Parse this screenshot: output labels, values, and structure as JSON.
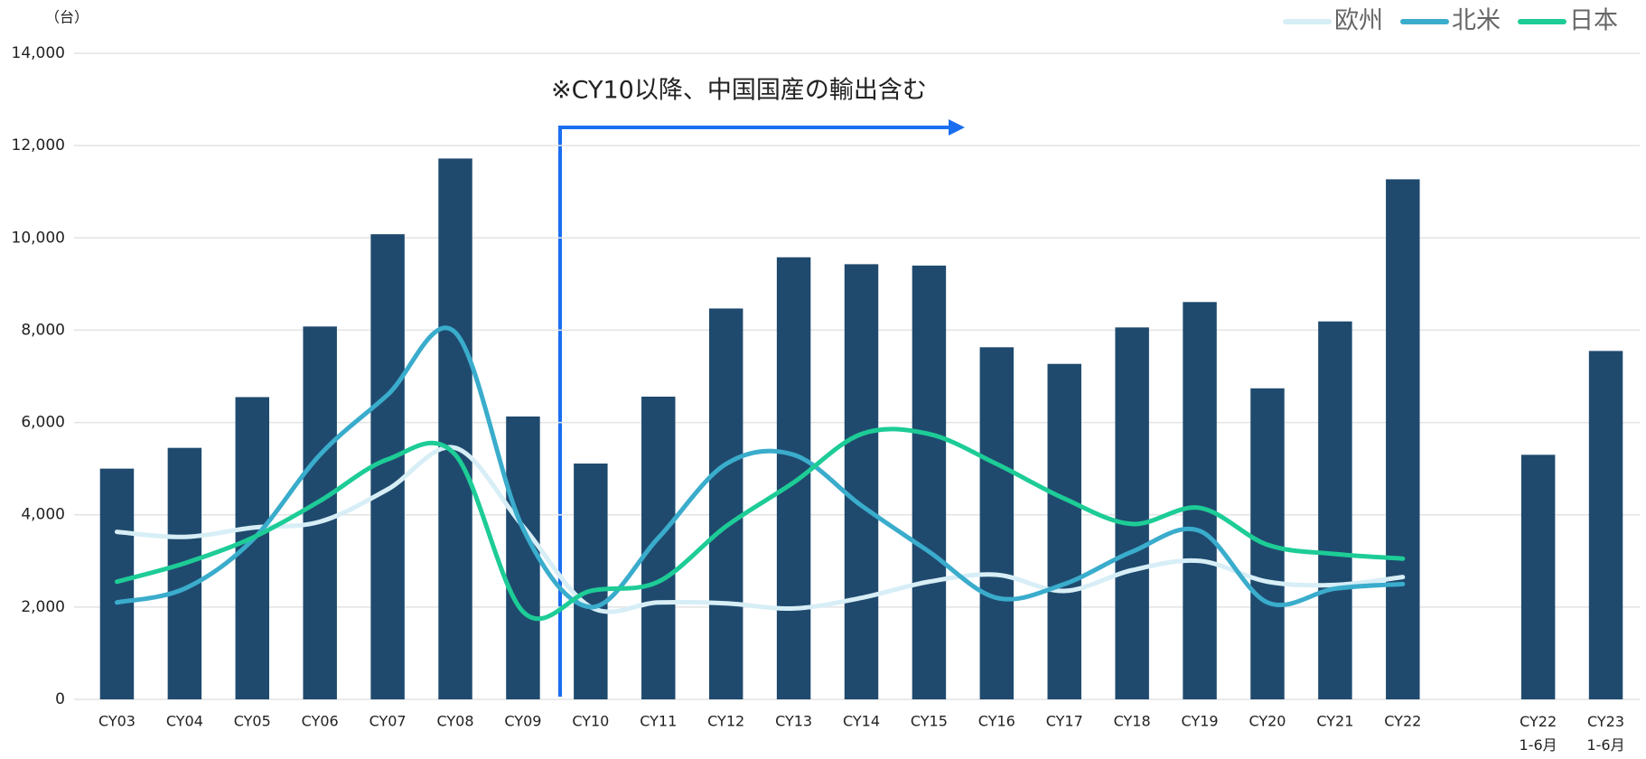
{
  "chart_data": {
    "type": "bar",
    "unit_label": "（台）",
    "annotation": "※CY10以降、中国国産の輸出含む",
    "categories": [
      "CY03",
      "CY04",
      "CY05",
      "CY06",
      "CY07",
      "CY08",
      "CY09",
      "CY10",
      "CY11",
      "CY12",
      "CY13",
      "CY14",
      "CY15",
      "CY16",
      "CY17",
      "CY18",
      "CY19",
      "CY20",
      "CY21",
      "CY22",
      null,
      "CY22\n1-6月",
      "CY23\n1-6月"
    ],
    "values": [
      5000,
      5450,
      6550,
      8080,
      10080,
      11720,
      6130,
      5110,
      6560,
      8470,
      9580,
      9430,
      9400,
      7630,
      7270,
      8060,
      8610,
      6740,
      8190,
      11270,
      null,
      5300,
      7550
    ],
    "color": "#1f4a6e",
    "series": [
      {
        "name": "欧州",
        "color": "#d7eef6",
        "values": [
          3630,
          3520,
          3720,
          3850,
          4550,
          5450,
          3750,
          2000,
          2100,
          2080,
          1970,
          2200,
          2550,
          2700,
          2350,
          2800,
          3000,
          2550,
          2480,
          2650,
          null,
          null,
          null
        ]
      },
      {
        "name": "北米",
        "color": "#3aaccc",
        "values": [
          2100,
          2400,
          3450,
          5300,
          6600,
          7950,
          3700,
          2000,
          3500,
          5100,
          5300,
          4200,
          3200,
          2200,
          2500,
          3200,
          3650,
          2100,
          2400,
          2500,
          null,
          null,
          null
        ]
      },
      {
        "name": "日本",
        "color": "#1dcc96",
        "values": [
          2550,
          2950,
          3500,
          4300,
          5200,
          5300,
          1900,
          2350,
          2550,
          3750,
          4700,
          5750,
          5750,
          5100,
          4350,
          3800,
          4150,
          3350,
          3150,
          3050,
          null,
          null,
          null
        ]
      }
    ],
    "ylim": [
      0,
      14000
    ],
    "yticks": [
      0,
      {
        "value": 2000,
        "label": "2,000"
      },
      {
        "value": 4000,
        "label": "4,000"
      },
      {
        "value": 6000,
        "label": "6,000"
      },
      {
        "value": 8000,
        "label": "8,000"
      },
      {
        "value": 10000,
        "label": "10,000"
      },
      {
        "value": 12000,
        "label": "12,000"
      },
      {
        "value": 14000,
        "label": "14,000"
      }
    ],
    "grid": true,
    "legend": "top-right"
  }
}
